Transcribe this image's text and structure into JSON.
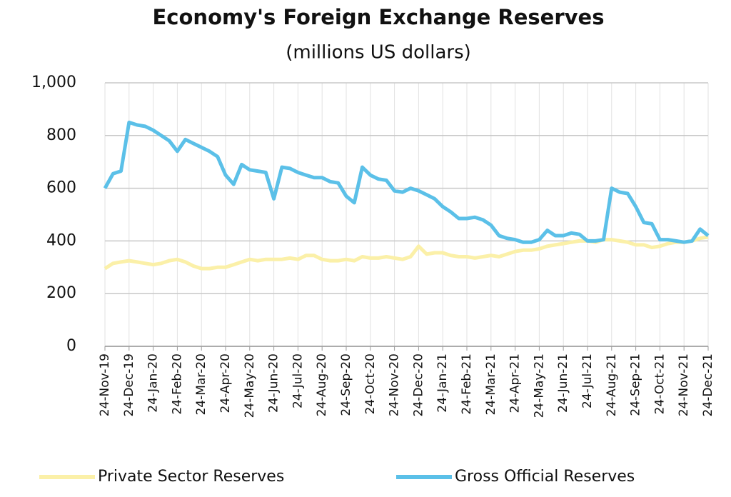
{
  "chart_data": {
    "type": "line",
    "title": "Economy's Foreign Exchange Reserves",
    "subtitle": "(millions US dollars)",
    "categories": [
      "24-Nov-19",
      null,
      null,
      "24-Dec-19",
      null,
      null,
      "24-Jan-20",
      null,
      null,
      "24-Feb-20",
      null,
      null,
      "24-Mar-20",
      null,
      null,
      "24-Apr-20",
      null,
      null,
      "24-May-20",
      null,
      null,
      "24-Jun-20",
      null,
      null,
      "24-Jul-20",
      null,
      null,
      "24-Aug-20",
      null,
      null,
      "24-Sep-20",
      null,
      null,
      "24-Oct-20",
      null,
      null,
      "24-Nov-20",
      null,
      null,
      "24-Dec-20",
      null,
      null,
      "24-Jan-21",
      null,
      null,
      "24-Feb-21",
      null,
      null,
      "24-Mar-21",
      null,
      null,
      "24-Apr-21",
      null,
      null,
      "24-May-21",
      null,
      null,
      "24-Jun-21",
      null,
      null,
      "24-Jul-21",
      null,
      null,
      "24-Aug-21",
      null,
      null,
      "24-Sep-21",
      null,
      null,
      "24-Oct-21",
      null,
      null,
      "24-Nov-21",
      null,
      null,
      "24-Dec-21"
    ],
    "series": [
      {
        "name": "Private Sector Reserves",
        "color": "#fbf0a8",
        "values": [
          295,
          315,
          320,
          325,
          320,
          315,
          310,
          315,
          325,
          330,
          320,
          305,
          295,
          295,
          300,
          300,
          310,
          320,
          330,
          325,
          330,
          330,
          330,
          335,
          330,
          345,
          345,
          330,
          325,
          325,
          330,
          325,
          340,
          335,
          335,
          340,
          335,
          330,
          340,
          380,
          350,
          355,
          355,
          345,
          340,
          340,
          335,
          340,
          345,
          340,
          350,
          360,
          365,
          365,
          370,
          380,
          385,
          390,
          395,
          400,
          400,
          395,
          405,
          405,
          400,
          395,
          385,
          385,
          375,
          380,
          390,
          395,
          395,
          400,
          410,
          415
        ]
      },
      {
        "name": "Gross Official Reserves",
        "color": "#5bc0e8",
        "values": [
          600,
          655,
          665,
          850,
          840,
          835,
          820,
          800,
          780,
          740,
          785,
          770,
          755,
          740,
          720,
          650,
          615,
          690,
          670,
          665,
          660,
          560,
          680,
          675,
          660,
          650,
          640,
          640,
          625,
          620,
          570,
          545,
          680,
          650,
          635,
          630,
          590,
          585,
          600,
          590,
          575,
          560,
          530,
          510,
          485,
          485,
          490,
          480,
          460,
          420,
          410,
          405,
          395,
          395,
          405,
          440,
          420,
          420,
          430,
          425,
          400,
          400,
          405,
          600,
          585,
          580,
          530,
          470,
          465,
          405,
          405,
          400,
          395,
          400,
          445,
          420
        ]
      }
    ],
    "ylim": [
      0,
      1000
    ],
    "yticks": [
      0,
      200,
      400,
      600,
      800,
      {
        "value": 1000,
        "label": "1,000"
      }
    ],
    "grid": true
  }
}
